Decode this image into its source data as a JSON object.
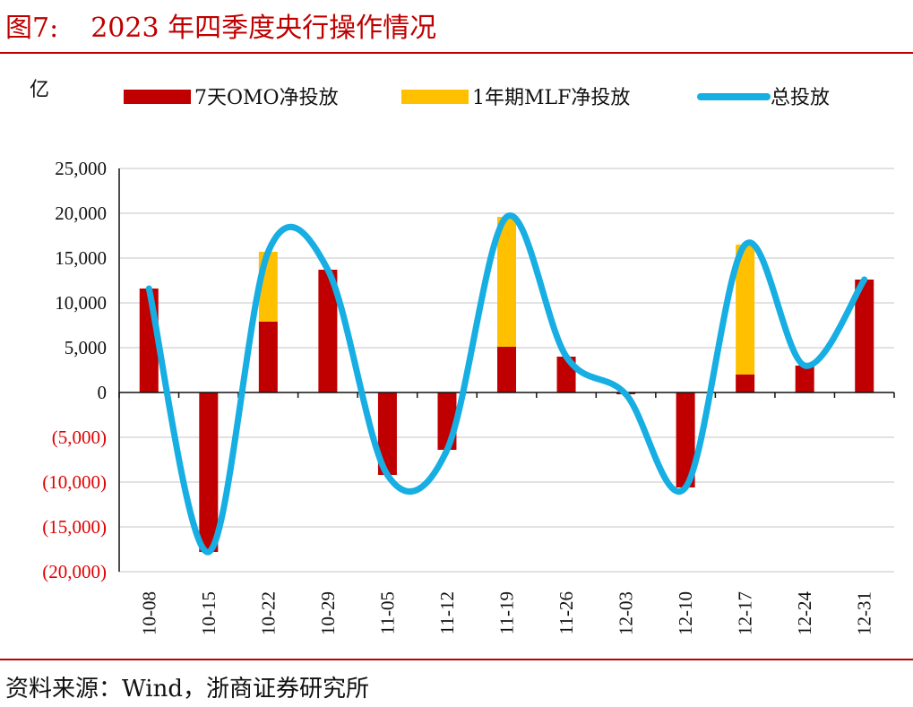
{
  "figure": {
    "label": "图7:",
    "title": "2023 年四季度央行操作情况",
    "source": "资料来源：Wind，浙商证券研究所"
  },
  "colors": {
    "omo": "#c00000",
    "mlf": "#ffc000",
    "total": "#16aee3",
    "negative_tick": "#e00000",
    "title": "#c00000",
    "grid": "#d9d9d9"
  },
  "chart_data": {
    "type": "bar",
    "stacked": true,
    "ylabel": "亿",
    "ylim": [
      -20000,
      25000
    ],
    "ytick_step": 5000,
    "ytick_labels": [
      "25,000",
      "20,000",
      "15,000",
      "10,000",
      "5,000",
      "0",
      "(5,000)",
      "(10,000)",
      "(15,000)",
      "(20,000)"
    ],
    "grid": true,
    "legend_position": "top",
    "categories": [
      "10-08",
      "10-15",
      "10-22",
      "10-29",
      "11-05",
      "11-12",
      "11-19",
      "11-26",
      "12-03",
      "12-10",
      "12-17",
      "12-24",
      "12-31"
    ],
    "series": [
      {
        "name": "7天OMO净投放",
        "type": "bar",
        "values": [
          11600,
          -17800,
          7900,
          13700,
          -9200,
          -6400,
          5100,
          4000,
          -200,
          -10600,
          2000,
          3000,
          12600
        ]
      },
      {
        "name": "1年期MLF净投放",
        "type": "bar",
        "values": [
          0,
          0,
          7800,
          0,
          0,
          0,
          14500,
          0,
          0,
          0,
          14500,
          0,
          0
        ]
      },
      {
        "name": "总投放",
        "type": "line",
        "smooth": true,
        "values": [
          11600,
          -17800,
          15700,
          13700,
          -9200,
          -6400,
          19600,
          4000,
          -200,
          -10600,
          16500,
          3000,
          12600
        ]
      }
    ]
  }
}
